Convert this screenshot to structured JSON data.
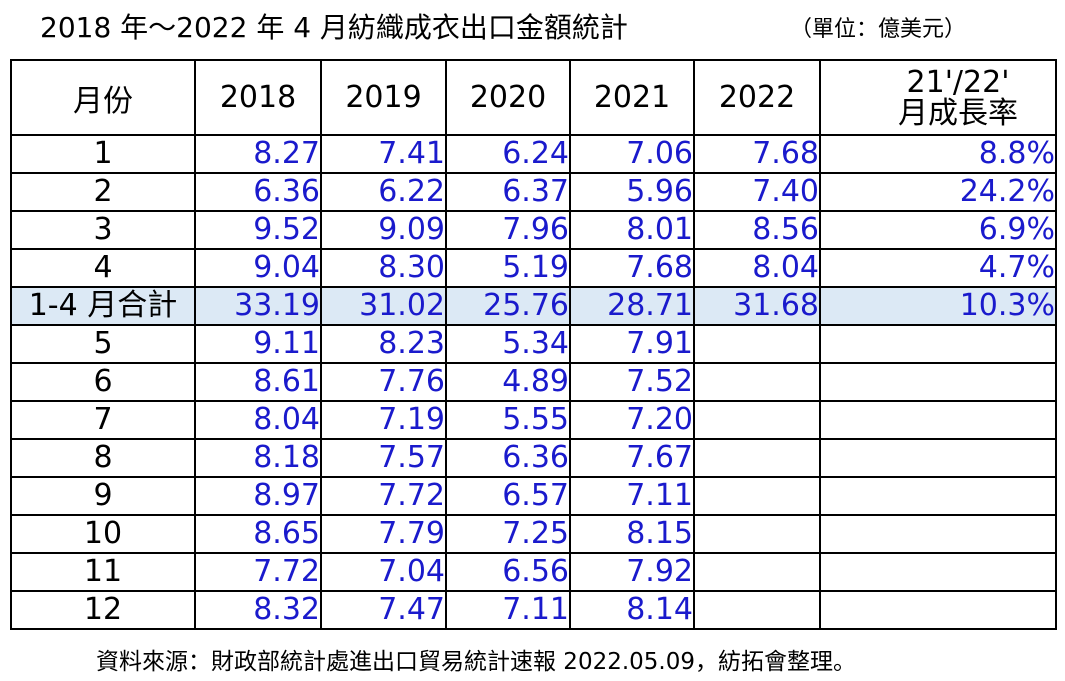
{
  "title": "2018 年～2022 年 4 月紡織成衣出口金額統計",
  "unit": "（單位：億美元）",
  "table": {
    "headers": [
      "月份",
      "2018",
      "2019",
      "2020",
      "2021",
      "2022"
    ],
    "growth_header": [
      "21'/22'",
      "月成長率"
    ],
    "rows": [
      {
        "month": "1",
        "values": [
          "8.27",
          "7.41",
          "6.24",
          "7.06",
          "7.68"
        ],
        "growth": "8.8%"
      },
      {
        "month": "2",
        "values": [
          "6.36",
          "6.22",
          "6.37",
          "5.96",
          "7.40"
        ],
        "growth": "24.2%"
      },
      {
        "month": "3",
        "values": [
          "9.52",
          "9.09",
          "7.96",
          "8.01",
          "8.56"
        ],
        "growth": "6.9%"
      },
      {
        "month": "4",
        "values": [
          "9.04",
          "8.30",
          "5.19",
          "7.68",
          "8.04"
        ],
        "growth": "4.7%"
      },
      {
        "month": "1-4 月合計",
        "values": [
          "33.19",
          "31.02",
          "25.76",
          "28.71",
          "31.68"
        ],
        "growth": "10.3%"
      },
      {
        "month": "5",
        "values": [
          "9.11",
          "8.23",
          "5.34",
          "7.91",
          ""
        ],
        "growth": ""
      },
      {
        "month": "6",
        "values": [
          "8.61",
          "7.76",
          "4.89",
          "7.52",
          ""
        ],
        "growth": ""
      },
      {
        "month": "7",
        "values": [
          "8.04",
          "7.19",
          "5.55",
          "7.20",
          ""
        ],
        "growth": ""
      },
      {
        "month": "8",
        "values": [
          "8.18",
          "7.57",
          "6.36",
          "7.67",
          ""
        ],
        "growth": ""
      },
      {
        "month": "9",
        "values": [
          "8.97",
          "7.72",
          "6.57",
          "7.11",
          ""
        ],
        "growth": ""
      },
      {
        "month": "10",
        "values": [
          "8.65",
          "7.79",
          "7.25",
          "8.15",
          ""
        ],
        "growth": ""
      },
      {
        "month": "11",
        "values": [
          "7.72",
          "7.04",
          "6.56",
          "7.92",
          ""
        ],
        "growth": ""
      },
      {
        "month": "12",
        "values": [
          "8.32",
          "7.47",
          "7.11",
          "8.14",
          ""
        ],
        "growth": ""
      }
    ]
  },
  "source": "資料來源：財政部統計處進出口貿易統計速報 2022.05.09，紡拓會整理。",
  "colors": {
    "value_text": "#1a1acc",
    "summary_row_bg": "#dce9f5",
    "border": "#000000"
  }
}
